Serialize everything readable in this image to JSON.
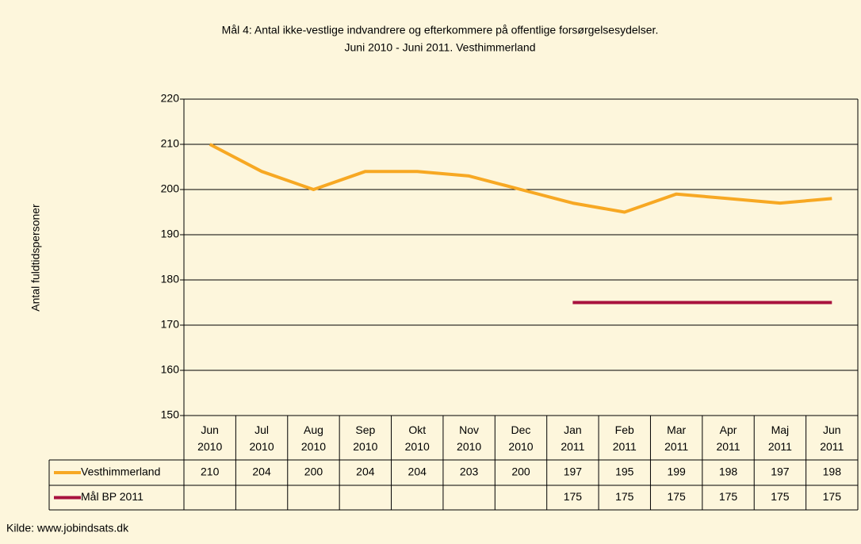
{
  "chart_data": {
    "type": "line",
    "title": "Mål 4: Antal ikke-vestlige indvandrere og efterkommere på offentlige forsørgelsesydelser.",
    "subtitle": "Juni 2010 - Juni 2011. Vesthimmerland",
    "y_label": "Antal fuldtidspersoner",
    "source": "Kilde: www.jobindsats.dk",
    "categories": [
      "Jun 2010",
      "Jul 2010",
      "Aug 2010",
      "Sep 2010",
      "Okt 2010",
      "Nov 2010",
      "Dec 2010",
      "Jan 2011",
      "Feb 2011",
      "Mar 2011",
      "Apr 2011",
      "Maj 2011",
      "Jun 2011"
    ],
    "series": [
      {
        "name": "Vesthimmerland",
        "color": "#f7a823",
        "values": [
          210,
          204,
          200,
          204,
          204,
          203,
          200,
          197,
          195,
          199,
          198,
          197,
          198
        ]
      },
      {
        "name": "Mål BP 2011",
        "color": "#a8123e",
        "values": [
          null,
          null,
          null,
          null,
          null,
          null,
          null,
          175,
          175,
          175,
          175,
          175,
          175
        ]
      }
    ],
    "ylim": [
      150,
      220
    ],
    "yticks": [
      150,
      160,
      170,
      180,
      190,
      200,
      210,
      220
    ],
    "grid": true
  }
}
